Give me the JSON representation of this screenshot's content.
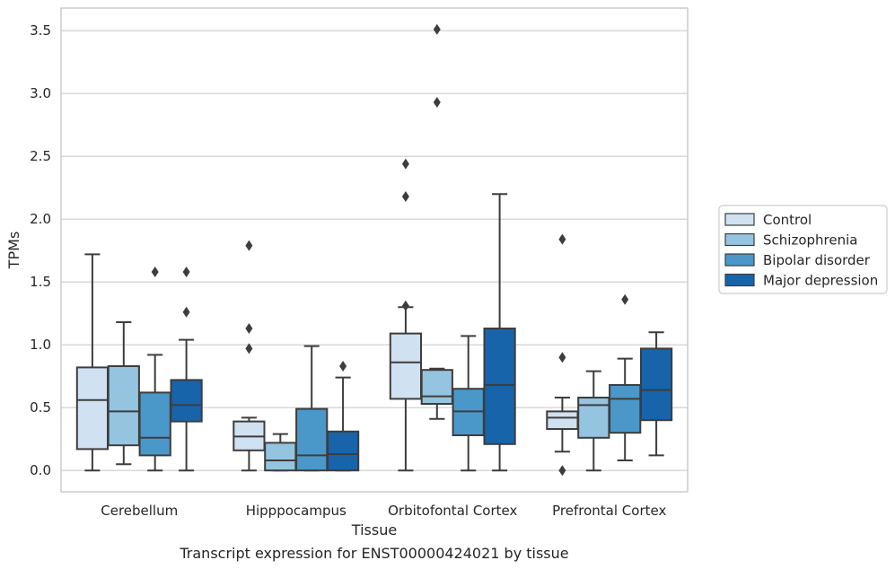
{
  "chart_data": {
    "type": "boxplot",
    "title": "",
    "caption": "Transcript expression for ENST00000424021 by tissue",
    "xlabel": "Tissue",
    "ylabel": "TPMs",
    "ylim": [
      -0.17,
      3.68
    ],
    "yticks": [
      "0.0",
      "0.5",
      "1.0",
      "1.5",
      "2.0",
      "2.5",
      "3.0",
      "3.5"
    ],
    "ytick_values": [
      0.0,
      0.5,
      1.0,
      1.5,
      2.0,
      2.5,
      3.0,
      3.5
    ],
    "grid": "horizontal",
    "legend_position": "right",
    "categories": [
      "Cerebellum",
      "Hipppocampus",
      "Orbitofontal Cortex",
      "Prefrontal Cortex"
    ],
    "series": [
      {
        "name": "Control",
        "color": "#d0e1f2",
        "boxes": [
          {
            "whislo": 0.0,
            "q1": 0.17,
            "med": 0.56,
            "q3": 0.82,
            "whishi": 1.72,
            "fliers": []
          },
          {
            "whislo": 0.0,
            "q1": 0.16,
            "med": 0.27,
            "q3": 0.39,
            "whishi": 0.42,
            "fliers": [
              1.79,
              1.13,
              0.97
            ]
          },
          {
            "whislo": 0.0,
            "q1": 0.57,
            "med": 0.86,
            "q3": 1.09,
            "whishi": 1.3,
            "fliers": [
              2.44,
              2.18,
              1.31
            ]
          },
          {
            "whislo": 0.15,
            "q1": 0.33,
            "med": 0.42,
            "q3": 0.47,
            "whishi": 0.58,
            "fliers": [
              1.84,
              0.9,
              0.0
            ]
          }
        ]
      },
      {
        "name": "Schizophrenia",
        "color": "#94c4df",
        "boxes": [
          {
            "whislo": 0.05,
            "q1": 0.2,
            "med": 0.47,
            "q3": 0.83,
            "whishi": 1.18,
            "fliers": []
          },
          {
            "whislo": 0.0,
            "q1": 0.0,
            "med": 0.08,
            "q3": 0.22,
            "whishi": 0.29,
            "fliers": []
          },
          {
            "whislo": 0.41,
            "q1": 0.53,
            "med": 0.59,
            "q3": 0.8,
            "whishi": 0.81,
            "fliers": [
              3.51,
              2.93
            ]
          },
          {
            "whislo": 0.0,
            "q1": 0.26,
            "med": 0.52,
            "q3": 0.58,
            "whishi": 0.79,
            "fliers": []
          }
        ]
      },
      {
        "name": "Bipolar disorder",
        "color": "#4a98c9",
        "boxes": [
          {
            "whislo": 0.0,
            "q1": 0.12,
            "med": 0.26,
            "q3": 0.62,
            "whishi": 0.92,
            "fliers": [
              1.58
            ]
          },
          {
            "whislo": 0.0,
            "q1": 0.0,
            "med": 0.12,
            "q3": 0.49,
            "whishi": 0.99,
            "fliers": []
          },
          {
            "whislo": 0.0,
            "q1": 0.28,
            "med": 0.47,
            "q3": 0.65,
            "whishi": 1.07,
            "fliers": []
          },
          {
            "whislo": 0.08,
            "q1": 0.3,
            "med": 0.57,
            "q3": 0.68,
            "whishi": 0.89,
            "fliers": [
              1.36
            ]
          }
        ]
      },
      {
        "name": "Major depression",
        "color": "#1764ab",
        "boxes": [
          {
            "whislo": 0.0,
            "q1": 0.39,
            "med": 0.52,
            "q3": 0.72,
            "whishi": 1.04,
            "fliers": [
              1.58,
              1.26
            ]
          },
          {
            "whislo": 0.0,
            "q1": 0.0,
            "med": 0.13,
            "q3": 0.31,
            "whishi": 0.74,
            "fliers": [
              0.83
            ]
          },
          {
            "whislo": 0.0,
            "q1": 0.21,
            "med": 0.68,
            "q3": 1.13,
            "whishi": 2.2,
            "fliers": []
          },
          {
            "whislo": 0.12,
            "q1": 0.4,
            "med": 0.64,
            "q3": 0.97,
            "whishi": 1.1,
            "fliers": []
          }
        ]
      }
    ]
  }
}
